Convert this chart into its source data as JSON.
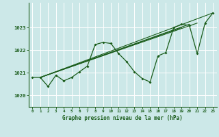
{
  "title": "Graphe pression niveau de la mer (hPa)",
  "bg_color": "#cce8e8",
  "grid_color": "#ffffff",
  "line_color": "#1a5c1a",
  "xlim": [
    -0.5,
    23.5
  ],
  "ylim": [
    1019.5,
    1024.1
  ],
  "yticks": [
    1020,
    1021,
    1022,
    1023
  ],
  "xticks": [
    0,
    1,
    2,
    3,
    4,
    5,
    6,
    7,
    8,
    9,
    10,
    11,
    12,
    13,
    14,
    15,
    16,
    17,
    18,
    19,
    20,
    21,
    22,
    23
  ],
  "zigzag_x": [
    0,
    1,
    2,
    3,
    4,
    5,
    6,
    7,
    8,
    9,
    10,
    11,
    12,
    13,
    14,
    15,
    16,
    17,
    18,
    19,
    20,
    21,
    22,
    23
  ],
  "zigzag_y": [
    1020.8,
    1020.8,
    1020.4,
    1020.9,
    1020.65,
    1020.8,
    1021.05,
    1021.3,
    1022.25,
    1022.35,
    1022.3,
    1021.85,
    1021.5,
    1021.05,
    1020.75,
    1020.6,
    1021.75,
    1021.9,
    1023.0,
    1023.15,
    1023.1,
    1021.85,
    1023.2,
    1023.65
  ],
  "trend_lines": [
    {
      "x": [
        1,
        19
      ],
      "y": [
        1020.8,
        1023.0
      ]
    },
    {
      "x": [
        1,
        20
      ],
      "y": [
        1020.8,
        1023.15
      ]
    },
    {
      "x": [
        1,
        21
      ],
      "y": [
        1020.8,
        1023.2
      ]
    },
    {
      "x": [
        1,
        23
      ],
      "y": [
        1020.8,
        1023.65
      ]
    }
  ]
}
